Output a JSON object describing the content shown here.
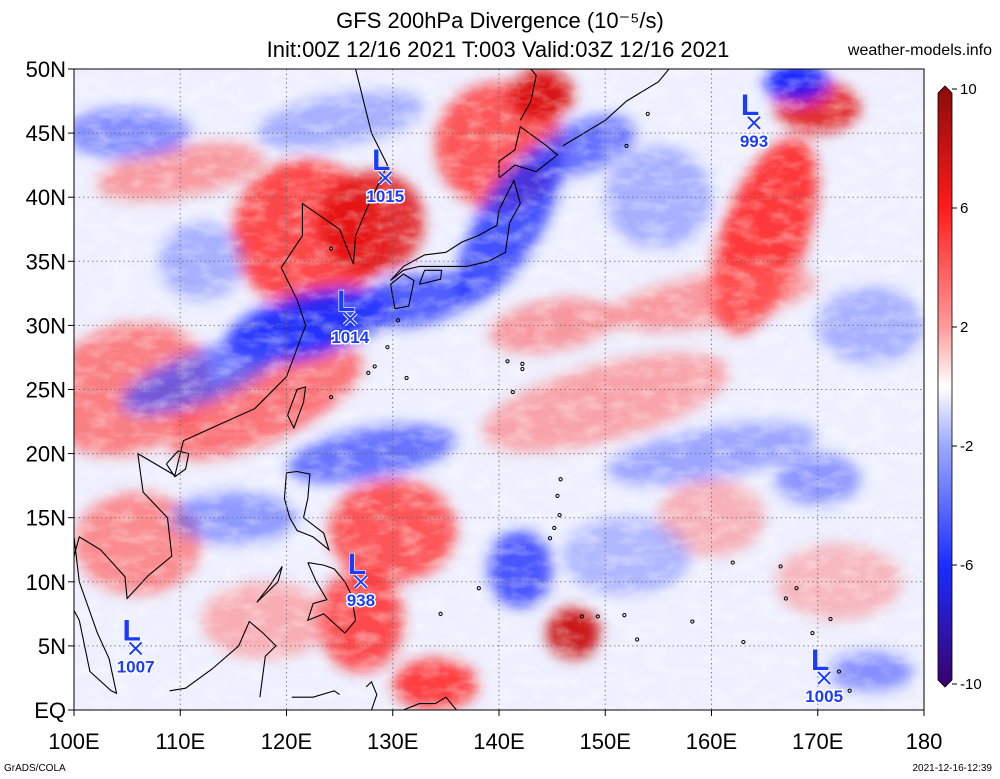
{
  "header": {
    "title": "GFS 200hPa Divergence (10⁻⁵/s)",
    "subtitle": "Init:00Z 12/16 2021 T:003 Valid:03Z 12/16 2021",
    "site": "weather-models.info"
  },
  "footer": {
    "left": "GrADS/COLA",
    "right": "2021-12-16-12:39"
  },
  "chart_data": {
    "type": "heatmap",
    "title": "GFS 200hPa Divergence (10⁻⁵/s)",
    "subtitle": "Init:00Z 12/16 2021 T:003 Valid:03Z 12/16 2021",
    "x_ticks": [
      "100E",
      "110E",
      "120E",
      "130E",
      "140E",
      "150E",
      "160E",
      "170E",
      "180"
    ],
    "y_ticks": [
      "EQ",
      "5N",
      "10N",
      "15N",
      "20N",
      "25N",
      "30N",
      "35N",
      "40N",
      "45N",
      "50N"
    ],
    "xlim": [
      100,
      180
    ],
    "ylim": [
      0,
      50
    ],
    "grid": true,
    "colorbar": {
      "ticks": [
        "10",
        "6",
        "2",
        "-2",
        "-6",
        "-10"
      ],
      "values": [
        10,
        6,
        2,
        -2,
        -6,
        -10
      ],
      "colors": {
        "max": "#8b0000",
        "high": "#ff2020",
        "low": "#ffffff",
        "neg": "#3050ff",
        "min": "#3a006a"
      }
    },
    "lows": [
      {
        "lon": 129.3,
        "lat": 41.5,
        "value": "1015"
      },
      {
        "lon": 126.0,
        "lat": 30.5,
        "value": "1014"
      },
      {
        "lon": 164.0,
        "lat": 45.8,
        "value": "993"
      },
      {
        "lon": 127.0,
        "lat": 10.0,
        "value": "938"
      },
      {
        "lon": 105.8,
        "lat": 4.8,
        "value": "1007"
      },
      {
        "lon": 170.6,
        "lat": 2.5,
        "value": "1005"
      }
    ],
    "low_symbol": "L"
  }
}
